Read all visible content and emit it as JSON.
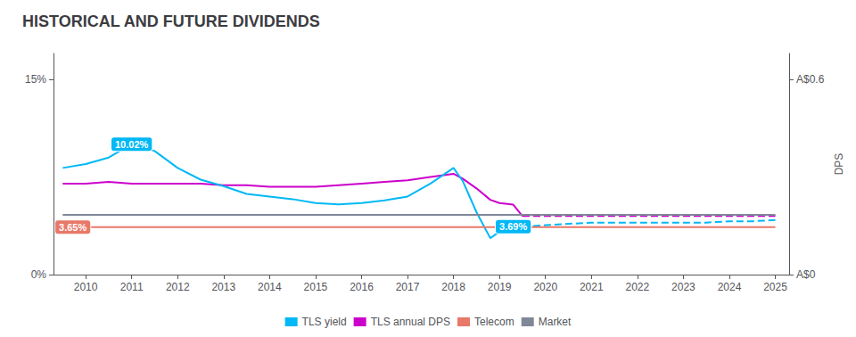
{
  "chart_data": {
    "type": "line",
    "title": "HISTORICAL AND FUTURE DIVIDENDS",
    "xlim": [
      2009.3,
      2025.3
    ],
    "xticks": [
      2010,
      2011,
      2012,
      2013,
      2014,
      2015,
      2016,
      2017,
      2018,
      2019,
      2020,
      2021,
      2022,
      2023,
      2024,
      2025
    ],
    "ylim": [
      0,
      0.17
    ],
    "yticks": [
      {
        "value": 0,
        "label": "0%"
      },
      {
        "value": 0.15,
        "label": "15%"
      }
    ],
    "y2lim": [
      0,
      0.68
    ],
    "y2ticks": [
      {
        "value": 0,
        "label": "A$0"
      },
      {
        "value": 0.6,
        "label": "A$0.6"
      }
    ],
    "y2label": "DPS",
    "grid": false,
    "legend": "bottom",
    "series": [
      {
        "name": "TLS yield",
        "color": "#00b8f5",
        "line_style": "solid",
        "x": [
          2009.5,
          2010.0,
          2010.5,
          2011.0,
          2011.5,
          2012.0,
          2012.5,
          2013.0,
          2013.5,
          2014.0,
          2014.5,
          2015.0,
          2015.5,
          2016.0,
          2016.5,
          2017.0,
          2017.5,
          2018.0,
          2018.2,
          2018.5,
          2018.8,
          2019.0,
          2019.3,
          2019.5
        ],
        "values": [
          0.082,
          0.085,
          0.09,
          0.1002,
          0.095,
          0.082,
          0.073,
          0.068,
          0.062,
          0.06,
          0.058,
          0.055,
          0.054,
          0.055,
          0.057,
          0.06,
          0.07,
          0.082,
          0.072,
          0.048,
          0.028,
          0.033,
          0.038,
          0.0369
        ]
      },
      {
        "name": "TLS yield",
        "color": "#00b8f5",
        "line_style": "dashed",
        "x": [
          2019.5,
          2020.0,
          2020.5,
          2021.0,
          2021.5,
          2022.0,
          2022.5,
          2023.0,
          2023.5,
          2024.0,
          2024.5,
          2025.0
        ],
        "values": [
          0.0369,
          0.038,
          0.039,
          0.04,
          0.04,
          0.04,
          0.04,
          0.04,
          0.04,
          0.041,
          0.041,
          0.042
        ]
      },
      {
        "name": "TLS annual DPS",
        "color": "#cc00cc",
        "line_style": "solid",
        "axis": "y2",
        "x": [
          2009.5,
          2010.0,
          2010.5,
          2011.0,
          2011.5,
          2012.0,
          2012.5,
          2013.0,
          2013.5,
          2014.0,
          2014.5,
          2015.0,
          2015.5,
          2016.0,
          2016.5,
          2017.0,
          2017.5,
          2018.0,
          2018.2,
          2018.5,
          2018.8,
          2019.0,
          2019.3,
          2019.5
        ],
        "values": [
          0.28,
          0.28,
          0.285,
          0.28,
          0.28,
          0.28,
          0.28,
          0.275,
          0.275,
          0.27,
          0.27,
          0.27,
          0.275,
          0.28,
          0.285,
          0.29,
          0.3,
          0.31,
          0.295,
          0.265,
          0.23,
          0.22,
          0.215,
          0.18
        ]
      },
      {
        "name": "TLS annual DPS",
        "color": "#cc00cc",
        "line_style": "dashed",
        "axis": "y2",
        "x": [
          2019.5,
          2020.0,
          2020.5,
          2021.0,
          2021.5,
          2022.0,
          2022.5,
          2023.0,
          2023.5,
          2024.0,
          2024.5,
          2025.0
        ],
        "values": [
          0.18,
          0.18,
          0.18,
          0.18,
          0.18,
          0.18,
          0.18,
          0.18,
          0.18,
          0.18,
          0.18,
          0.18
        ]
      },
      {
        "name": "Telecom",
        "color": "#e87868",
        "line_style": "solid",
        "x": [
          2009.5,
          2025.0
        ],
        "values": [
          0.0365,
          0.0365
        ]
      },
      {
        "name": "Market",
        "color": "#808898",
        "line_style": "solid",
        "x": [
          2009.5,
          2025.0
        ],
        "values": [
          0.046,
          0.046
        ]
      }
    ],
    "annotations": [
      {
        "text": "10.02%",
        "x": 2011.0,
        "y": 0.1002,
        "color": "#00b8f5"
      },
      {
        "text": "3.65%",
        "x": 2009.72,
        "y": 0.0365,
        "color": "#e87868"
      },
      {
        "text": "3.69%",
        "x": 2019.3,
        "y": 0.0369,
        "color": "#00b8f5"
      }
    ]
  }
}
